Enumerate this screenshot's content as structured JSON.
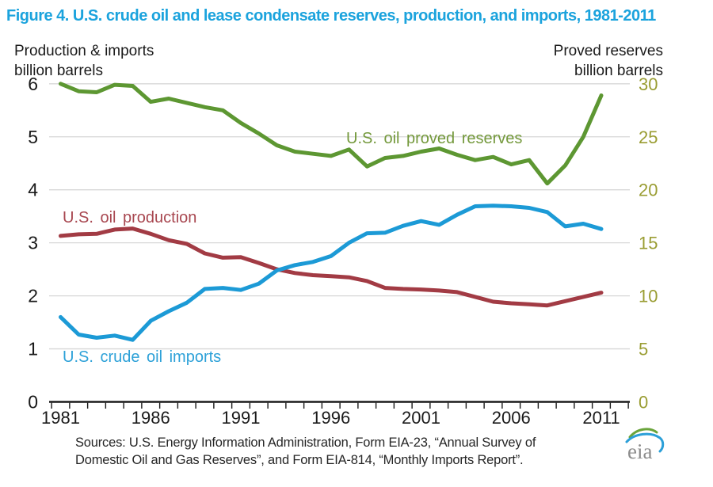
{
  "title": "Figure 4. U.S. crude oil and lease condensate reserves, production, and imports, 1981-2011",
  "left_axis": {
    "header_line1": "Production & imports",
    "header_line2": "billion barrels",
    "tick_labels": [
      6,
      5,
      4,
      3,
      2,
      1,
      0
    ],
    "color": "#1a1a1a"
  },
  "right_axis": {
    "header_line1": "Proved reserves",
    "header_line2": "billion barrels",
    "tick_labels": [
      30,
      25,
      20,
      15,
      10,
      5,
      0
    ],
    "color": "#9a9d33"
  },
  "x_axis": {
    "labeled_years": [
      1981,
      1986,
      1991,
      1996,
      2001,
      2006,
      2011
    ],
    "color": "#1a1a1a"
  },
  "chart_data": {
    "type": "line",
    "title": "Figure 4. U.S. crude oil and lease condensate reserves, production, and imports, 1981-2011",
    "x": [
      1981,
      1982,
      1983,
      1984,
      1985,
      1986,
      1987,
      1988,
      1989,
      1990,
      1991,
      1992,
      1993,
      1994,
      1995,
      1996,
      1997,
      1998,
      1999,
      2000,
      2001,
      2002,
      2003,
      2004,
      2005,
      2006,
      2007,
      2008,
      2009,
      2010,
      2011
    ],
    "left_ylabel": "Production & imports billion barrels",
    "right_ylabel": "Proved reserves billion barrels",
    "left_ylim": [
      0,
      6
    ],
    "right_ylim": [
      0,
      30
    ],
    "grid": "horizontal",
    "legend_position": "inline-labels",
    "series": [
      {
        "name": "U.S. oil proved reserves",
        "axis": "right",
        "color": "#5d9732",
        "label_color": "#74993c",
        "values": [
          30.0,
          29.3,
          29.2,
          29.9,
          29.8,
          28.3,
          28.6,
          28.2,
          27.8,
          27.5,
          26.3,
          25.3,
          24.2,
          23.6,
          23.4,
          23.2,
          23.8,
          22.2,
          23.0,
          23.2,
          23.6,
          23.9,
          23.3,
          22.8,
          23.1,
          22.4,
          22.8,
          20.6,
          22.3,
          25.0,
          28.9
        ]
      },
      {
        "name": "U.S. oil production",
        "axis": "left",
        "color": "#a23b44",
        "label_color": "#a84750",
        "values": [
          3.13,
          3.16,
          3.17,
          3.25,
          3.27,
          3.17,
          3.05,
          2.98,
          2.8,
          2.72,
          2.73,
          2.62,
          2.5,
          2.43,
          2.39,
          2.37,
          2.35,
          2.28,
          2.15,
          2.13,
          2.12,
          2.1,
          2.07,
          1.98,
          1.89,
          1.86,
          1.84,
          1.82,
          1.9,
          1.98,
          2.06
        ]
      },
      {
        "name": "U.S. crude oil imports",
        "axis": "left",
        "color": "#1c9ad6",
        "label_color": "#2da1d8",
        "values": [
          1.6,
          1.27,
          1.21,
          1.25,
          1.17,
          1.53,
          1.71,
          1.87,
          2.13,
          2.15,
          2.11,
          2.23,
          2.48,
          2.58,
          2.64,
          2.75,
          3.0,
          3.18,
          3.19,
          3.32,
          3.41,
          3.34,
          3.53,
          3.69,
          3.7,
          3.69,
          3.66,
          3.58,
          3.31,
          3.36,
          3.26
        ]
      }
    ]
  },
  "sources": {
    "line1": "Sources: U.S. Energy Information Administration, Form EIA-23, “Annual Survey of",
    "line2": "Domestic Oil and Gas Reserves”, and Form EIA-814, “Monthly Imports Report”."
  },
  "logo": {
    "text": "eia"
  },
  "colors": {
    "title": "#1ba3dd",
    "gridline": "#d7d7d7",
    "axis": "#1a1a1a",
    "right_axis_text": "#9a9d33"
  }
}
